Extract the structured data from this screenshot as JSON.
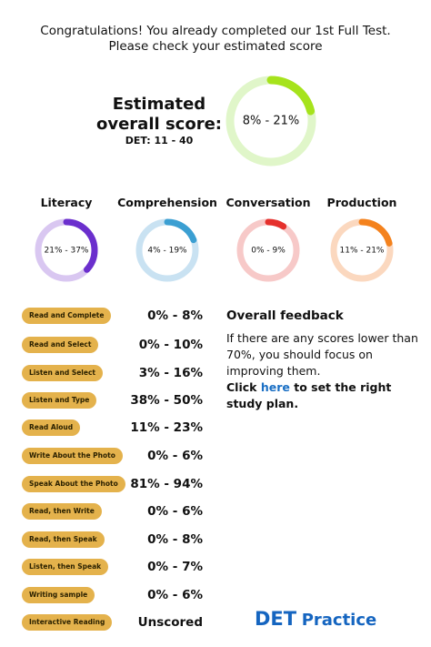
{
  "header": {
    "lines": [
      "Congratulations! You already completed our 1st Full Test.",
      "Please check your estimated score"
    ]
  },
  "overall": {
    "title_lines": [
      "Estimated",
      "overall score:"
    ],
    "det": "DET: 11 - 40",
    "label": "8% - 21%",
    "value": 21,
    "color": "#a6e31c",
    "track": "#e0f6c9"
  },
  "categories": [
    {
      "name": "Literacy",
      "label": "21% - 37%",
      "value": 37,
      "color": "#6b2fcd",
      "track": "#d9c7f1"
    },
    {
      "name": "Comprehension",
      "label": "4% - 19%",
      "value": 19,
      "color": "#3b9fd2",
      "track": "#c9e2f2"
    },
    {
      "name": "Conversation",
      "label": "0% - 9%",
      "value": 9,
      "color": "#e5302c",
      "track": "#f7c9c8"
    },
    {
      "name": "Production",
      "label": "11% - 21%",
      "value": 21,
      "color": "#f4821d",
      "track": "#fbd8bf"
    }
  ],
  "skills": [
    {
      "name": "Read and Complete",
      "score": "0% - 8%"
    },
    {
      "name": "Read and Select",
      "score": "0% - 10%"
    },
    {
      "name": "Listen and Select",
      "score": "3% - 16%"
    },
    {
      "name": "Listen and Type",
      "score": "38% - 50%"
    },
    {
      "name": "Read Aloud",
      "score": "11% - 23%"
    },
    {
      "name": "Write About the Photo",
      "score": "0% - 6%"
    },
    {
      "name": "Speak About the Photo",
      "score": "81% - 94%"
    },
    {
      "name": "Read, then Write",
      "score": "0% - 6%"
    },
    {
      "name": "Read, then Speak",
      "score": "0% - 8%"
    },
    {
      "name": "Listen, then Speak",
      "score": "0% - 7%"
    },
    {
      "name": "Writing sample",
      "score": "0% - 6%"
    },
    {
      "name": "Interactive Reading",
      "score": "Unscored"
    }
  ],
  "feedback": {
    "title": "Overall feedback",
    "text": "If there are any scores lower than 70%, you should focus on improving them.",
    "cta_before": "Click",
    "cta_link": "here",
    "cta_after": "to set the right study plan."
  },
  "brand": {
    "bold": "DET",
    "rest": "Practice"
  }
}
